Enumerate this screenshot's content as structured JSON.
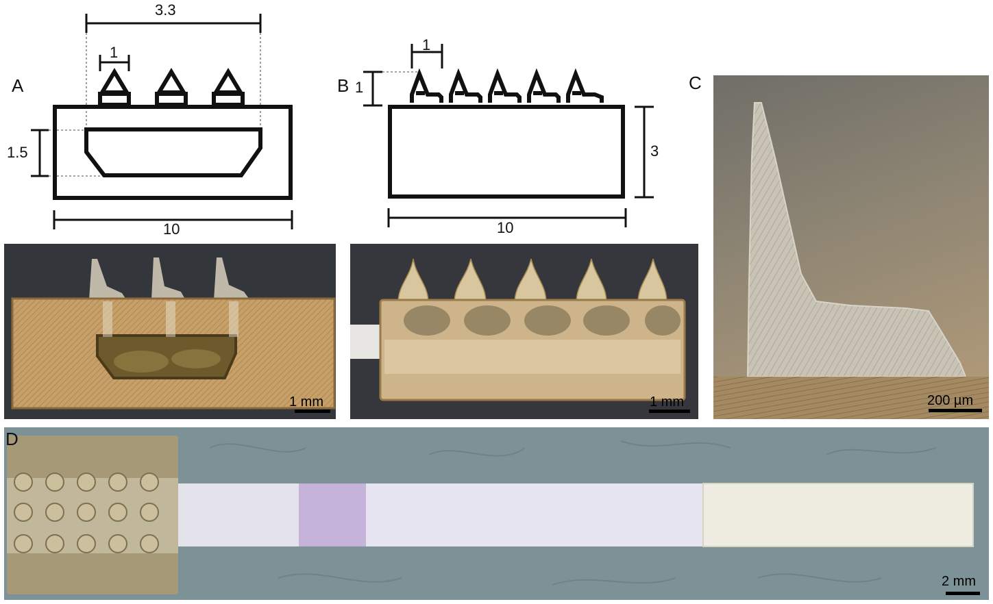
{
  "panels": {
    "a": {
      "letter": "A",
      "dims": {
        "top_width": "3.3",
        "spike_width": "1",
        "cavity_height": "1.5",
        "base_width": "10"
      },
      "photo_scalebar": "1 mm"
    },
    "b": {
      "letter": "B",
      "dims": {
        "spike_width": "1",
        "spike_height": "1",
        "base_height": "3",
        "base_width": "10"
      },
      "photo_scalebar": "1 mm"
    },
    "c": {
      "letter": "C",
      "photo_scalebar": "200 µm"
    },
    "d": {
      "letter": "D",
      "photo_scalebar": "2 mm"
    }
  },
  "colors": {
    "dark_bg": "#34373c",
    "resin": "#c9a574",
    "resin_dark": "#8a6a3a",
    "mat": "#7d9498",
    "strip": "#e7e6ee",
    "conjugate_pad": "#c7b7dc",
    "absorbent_pad": "#f0ede3"
  }
}
